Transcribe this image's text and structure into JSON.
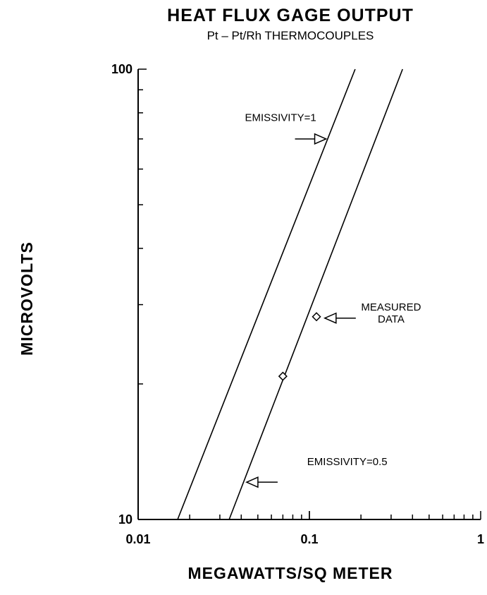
{
  "chart_data": {
    "type": "line",
    "title": "HEAT FLUX GAGE OUTPUT",
    "subtitle": "Pt  –  Pt/Rh THERMOCOUPLES",
    "xlabel": "MEGAWATTS/SQ METER",
    "ylabel": "MICROVOLTS",
    "xscale": "log",
    "yscale": "log",
    "xlim": [
      0.01,
      1
    ],
    "ylim": [
      10,
      100
    ],
    "x_ticks": [
      {
        "value": 0.01,
        "label": "0.01"
      },
      {
        "value": 0.1,
        "label": "0.1"
      },
      {
        "value": 1,
        "label": "1"
      }
    ],
    "y_ticks": [
      {
        "value": 10,
        "label": "10"
      },
      {
        "value": 100,
        "label": "100"
      }
    ],
    "grid": false,
    "series": [
      {
        "name": "EMISSIVITY=1",
        "kind": "line",
        "x": [
          0.017,
          0.185
        ],
        "y": [
          10,
          100
        ]
      },
      {
        "name": "EMISSIVITY=0.5",
        "kind": "line",
        "x": [
          0.034,
          0.35
        ],
        "y": [
          10,
          100
        ]
      },
      {
        "name": "MEASURED DATA",
        "kind": "scatter",
        "marker": "diamond",
        "x": [
          0.07,
          0.11
        ],
        "y": [
          20.8,
          28.2
        ]
      }
    ],
    "annotations": [
      {
        "lines": [
          "EMISSIVITY=1"
        ],
        "anchor": "start",
        "arrow": "right",
        "at": {
          "x": 0.125,
          "y": 70
        },
        "text_at": {
          "x": 0.042,
          "y": 76.7
        }
      },
      {
        "lines": [
          "MEASURED",
          "DATA"
        ],
        "anchor": "middle",
        "arrow": "left",
        "at": {
          "x": 0.123,
          "y": 28
        },
        "text_at": {
          "x": 0.3,
          "y": 29.1
        }
      },
      {
        "lines": [
          "EMISSIVITY=0.5"
        ],
        "anchor": "start",
        "arrow": "left",
        "at": {
          "x": 0.043,
          "y": 12.1
        },
        "text_at": {
          "x": 0.097,
          "y": 13.2
        }
      }
    ]
  }
}
